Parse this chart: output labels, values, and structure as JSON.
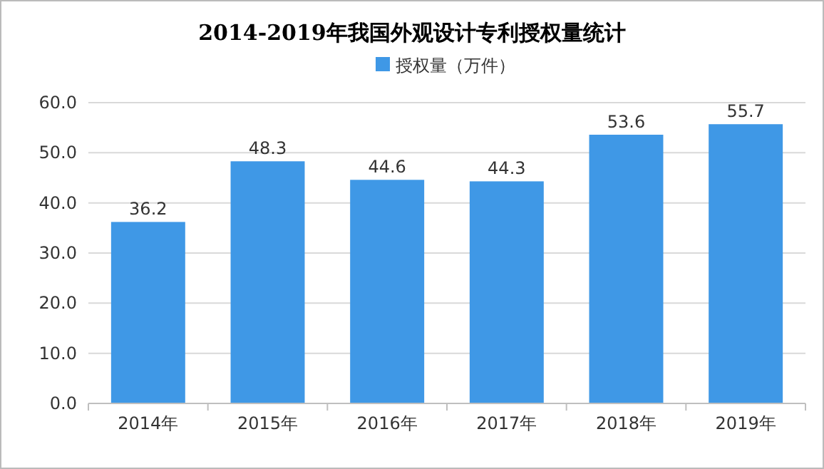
{
  "chart_data": {
    "type": "bar",
    "title": "2014-2019年我国外观设计专利授权量统计",
    "categories": [
      "2014年",
      "2015年",
      "2016年",
      "2017年",
      "2018年",
      "2019年"
    ],
    "series": [
      {
        "name": "授权量（万件）",
        "color": "#3f98e6",
        "values": [
          36.2,
          48.3,
          44.6,
          44.3,
          53.6,
          55.7
        ]
      }
    ],
    "ylim": [
      0,
      60
    ],
    "yticks": [
      {
        "value": 0,
        "label": "0.0"
      },
      {
        "value": 10,
        "label": "10.0"
      },
      {
        "value": 20,
        "label": "20.0"
      },
      {
        "value": 30,
        "label": "30.0"
      },
      {
        "value": 40,
        "label": "40.0"
      },
      {
        "value": 50,
        "label": "50.0"
      },
      {
        "value": 60,
        "label": "60.0"
      }
    ],
    "grid": "y",
    "legend": "top",
    "data_labels": true
  }
}
